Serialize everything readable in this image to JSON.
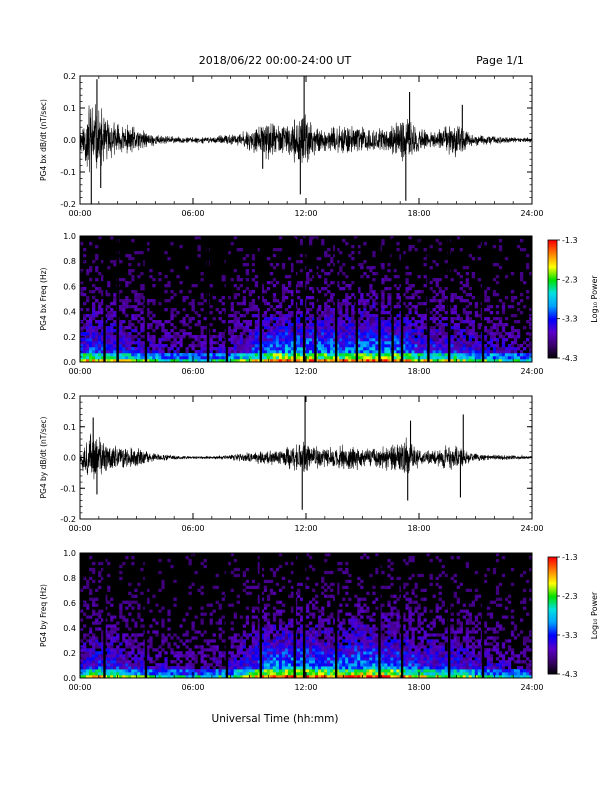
{
  "header": {
    "title": "2018/06/22  00:00-24:00 UT",
    "page": "Page 1/1"
  },
  "colors": {
    "background": "#ffffff",
    "axes": "#000000",
    "trace": "#000000",
    "spectrogram_floor": "#000000"
  },
  "x_axis": {
    "title": "Universal Time (hh:mm)",
    "tick_labels": [
      "00:00",
      "06:00",
      "12:00",
      "18:00",
      "24:00"
    ],
    "range_hours": [
      0,
      24
    ]
  },
  "colorbar": {
    "label": "Log₁₀ Power",
    "tick_labels": [
      "-1.3",
      "-2.3",
      "-3.3",
      "-4.3"
    ],
    "range": [
      -4.3,
      -1.3
    ],
    "colormap": [
      "#000000",
      "#3a006b",
      "#5a00c8",
      "#0000ff",
      "#00a0ff",
      "#00e0e0",
      "#00e000",
      "#ffff00",
      "#ff8000",
      "#ff0000"
    ]
  },
  "chart_data": [
    {
      "type": "line",
      "ylabel": "PG4 bx dB/dt (nT/sec)",
      "ylim": [
        -0.2,
        0.2
      ],
      "y_tick_labels": [
        "0.2",
        "0.1",
        "0.0",
        "-0.1",
        "-0.2"
      ],
      "x_unit": "hours UT",
      "envelope": {
        "hours": [
          0.0,
          0.3,
          0.5,
          0.8,
          1.2,
          1.6,
          2.0,
          2.5,
          3.0,
          3.5,
          4.0,
          5.0,
          6.0,
          7.0,
          8.0,
          8.5,
          9.0,
          9.5,
          10.0,
          10.5,
          11.0,
          11.5,
          12.0,
          12.5,
          13.0,
          13.5,
          14.0,
          14.5,
          15.0,
          15.5,
          16.0,
          16.5,
          17.0,
          17.4,
          17.6,
          18.0,
          18.5,
          19.0,
          19.5,
          20.0,
          20.5,
          21.0,
          22.0,
          23.0,
          24.0
        ],
        "amplitude": [
          0.04,
          0.09,
          0.16,
          0.13,
          0.1,
          0.07,
          0.06,
          0.05,
          0.045,
          0.03,
          0.02,
          0.012,
          0.01,
          0.012,
          0.02,
          0.025,
          0.04,
          0.05,
          0.07,
          0.06,
          0.05,
          0.08,
          0.09,
          0.05,
          0.04,
          0.045,
          0.05,
          0.055,
          0.05,
          0.04,
          0.04,
          0.05,
          0.07,
          0.08,
          0.07,
          0.04,
          0.03,
          0.035,
          0.05,
          0.06,
          0.035,
          0.02,
          0.015,
          0.01,
          0.008
        ]
      },
      "spikes": [
        {
          "hour": 0.6,
          "value": -0.2
        },
        {
          "hour": 0.9,
          "value": 0.19
        },
        {
          "hour": 1.1,
          "value": -0.15
        },
        {
          "hour": 9.7,
          "value": -0.09
        },
        {
          "hour": 11.7,
          "value": -0.17
        },
        {
          "hour": 11.9,
          "value": 0.2
        },
        {
          "hour": 17.3,
          "value": -0.19
        },
        {
          "hour": 17.5,
          "value": 0.15
        },
        {
          "hour": 20.3,
          "value": 0.11
        }
      ]
    },
    {
      "type": "heatmap",
      "ylabel": "PG4 bx Freq (Hz)",
      "ylim": [
        0.0,
        1.0
      ],
      "y_tick_labels": [
        "1.0",
        "0.8",
        "0.6",
        "0.4",
        "0.2",
        "0.0"
      ],
      "z_range": [
        -4.3,
        -1.3
      ],
      "activity_hours": [
        0,
        1,
        2,
        3,
        4,
        6,
        8,
        9,
        10,
        11,
        12,
        13,
        14,
        15,
        16,
        17,
        18,
        19,
        20,
        21,
        22,
        23,
        24
      ],
      "activity_level": [
        0.45,
        0.5,
        0.42,
        0.35,
        0.28,
        0.2,
        0.28,
        0.42,
        0.55,
        0.6,
        0.58,
        0.55,
        0.55,
        0.6,
        0.6,
        0.55,
        0.45,
        0.4,
        0.42,
        0.35,
        0.3,
        0.25,
        0.2
      ],
      "gap_hours": [
        1.3,
        2.0,
        3.5,
        6.8,
        7.8,
        9.6,
        11.4,
        11.9,
        12.5,
        13.6,
        14.7,
        15.9,
        16.6,
        17.1,
        18.5,
        19.6,
        21.4
      ]
    },
    {
      "type": "line",
      "ylabel": "PG4 by dB/dt (nT/sec)",
      "ylim": [
        -0.2,
        0.2
      ],
      "y_tick_labels": [
        "0.2",
        "0.1",
        "0.0",
        "-0.1",
        "-0.2"
      ],
      "x_unit": "hours UT",
      "envelope": {
        "hours": [
          0.0,
          0.3,
          0.5,
          0.8,
          1.2,
          1.6,
          2.0,
          2.5,
          3.0,
          3.5,
          4.0,
          5.0,
          6.0,
          7.0,
          8.0,
          8.5,
          9.0,
          9.5,
          10.0,
          10.5,
          11.0,
          11.5,
          12.0,
          12.5,
          13.0,
          13.5,
          14.0,
          14.5,
          15.0,
          15.5,
          16.0,
          16.5,
          17.0,
          17.4,
          17.6,
          18.0,
          18.5,
          19.0,
          19.5,
          20.0,
          20.5,
          21.0,
          22.0,
          23.0,
          24.0
        ],
        "amplitude": [
          0.03,
          0.07,
          0.09,
          0.08,
          0.07,
          0.05,
          0.045,
          0.04,
          0.035,
          0.025,
          0.015,
          0.008,
          0.005,
          0.006,
          0.01,
          0.015,
          0.02,
          0.025,
          0.03,
          0.035,
          0.04,
          0.05,
          0.06,
          0.045,
          0.035,
          0.04,
          0.045,
          0.045,
          0.04,
          0.035,
          0.04,
          0.05,
          0.06,
          0.07,
          0.06,
          0.03,
          0.025,
          0.03,
          0.045,
          0.05,
          0.03,
          0.015,
          0.01,
          0.008,
          0.006
        ]
      },
      "spikes": [
        {
          "hour": 0.7,
          "value": 0.13
        },
        {
          "hour": 0.9,
          "value": -0.12
        },
        {
          "hour": 11.8,
          "value": -0.17
        },
        {
          "hour": 11.95,
          "value": 0.2
        },
        {
          "hour": 17.4,
          "value": -0.14
        },
        {
          "hour": 17.55,
          "value": 0.12
        },
        {
          "hour": 20.2,
          "value": -0.13
        },
        {
          "hour": 20.35,
          "value": 0.14
        }
      ]
    },
    {
      "type": "heatmap",
      "ylabel": "PG4 by Freq (Hz)",
      "ylim": [
        0.0,
        1.0
      ],
      "y_tick_labels": [
        "1.0",
        "0.8",
        "0.6",
        "0.4",
        "0.2",
        "0.0"
      ],
      "z_range": [
        -4.3,
        -1.3
      ],
      "activity_hours": [
        0,
        1,
        2,
        3,
        4,
        6,
        8,
        9,
        10,
        11,
        12,
        13,
        14,
        15,
        16,
        17,
        18,
        19,
        20,
        21,
        22,
        23,
        24
      ],
      "activity_level": [
        0.4,
        0.45,
        0.4,
        0.32,
        0.25,
        0.18,
        0.28,
        0.45,
        0.6,
        0.62,
        0.6,
        0.55,
        0.55,
        0.62,
        0.62,
        0.55,
        0.45,
        0.4,
        0.4,
        0.32,
        0.28,
        0.22,
        0.18
      ],
      "gap_hours": [
        1.3,
        3.5,
        7.8,
        9.6,
        11.4,
        11.9,
        13.6,
        15.9,
        17.1,
        19.6,
        21.4
      ]
    }
  ]
}
